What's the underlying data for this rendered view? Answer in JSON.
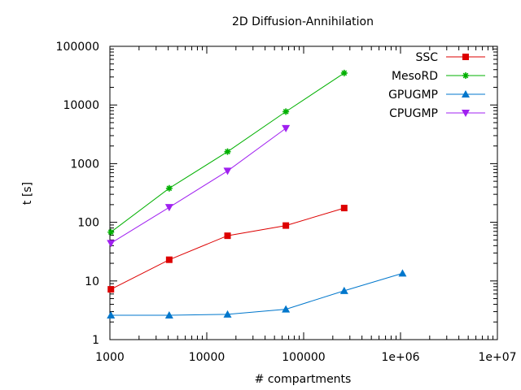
{
  "chart_data": {
    "type": "line",
    "title": "2D Diffusion-Annihilation",
    "xlabel": "# compartments",
    "ylabel": "t [s]",
    "xscale": "log",
    "yscale": "log",
    "xlim": [
      1000,
      10000000
    ],
    "ylim": [
      1,
      100000
    ],
    "grid": false,
    "legend_position": "top-right",
    "x_ticks": [
      {
        "value": 1000,
        "label": "1000"
      },
      {
        "value": 10000,
        "label": "10000"
      },
      {
        "value": 100000,
        "label": "100000"
      },
      {
        "value": 1000000,
        "label": "1e+06"
      },
      {
        "value": 10000000,
        "label": "1e+07"
      }
    ],
    "y_ticks": [
      {
        "value": 1,
        "label": "1"
      },
      {
        "value": 10,
        "label": "10"
      },
      {
        "value": 100,
        "label": "100"
      },
      {
        "value": 1000,
        "label": "1000"
      },
      {
        "value": 10000,
        "label": "10000"
      },
      {
        "value": 100000,
        "label": "100000"
      }
    ],
    "series": [
      {
        "name": "SSC",
        "color": "#dd0000",
        "marker": "square",
        "x": [
          1024,
          4096,
          16384,
          65536,
          262144
        ],
        "y": [
          7.2,
          23,
          59,
          88,
          175
        ]
      },
      {
        "name": "MesoRD",
        "color": "#00b000",
        "marker": "star",
        "x": [
          1024,
          4096,
          16384,
          65536,
          262144
        ],
        "y": [
          68,
          380,
          1600,
          7700,
          35000
        ]
      },
      {
        "name": "GPUGMP",
        "color": "#0077cc",
        "marker": "triangle-up",
        "x": [
          1024,
          4096,
          16384,
          65536,
          262144,
          1048576
        ],
        "y": [
          2.6,
          2.6,
          2.7,
          3.3,
          6.8,
          13.5
        ]
      },
      {
        "name": "CPUGMP",
        "color": "#a020f0",
        "marker": "triangle-down",
        "x": [
          1024,
          4096,
          16384,
          65536
        ],
        "y": [
          44,
          180,
          750,
          4000
        ]
      }
    ]
  }
}
